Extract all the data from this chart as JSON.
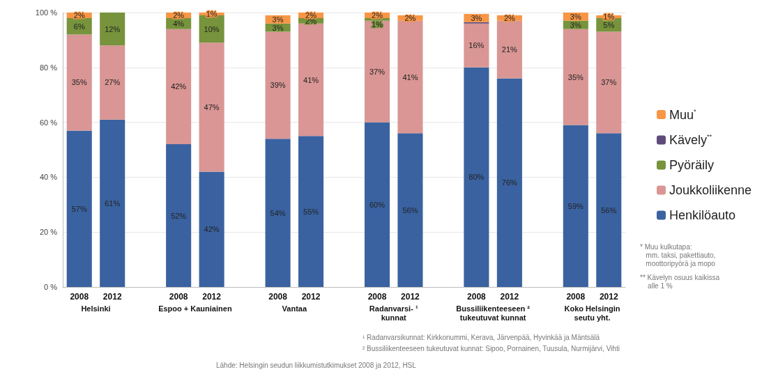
{
  "chart_data": {
    "type": "bar",
    "stacked": true,
    "categories": [
      "2008",
      "2012",
      null,
      "2008",
      "2012",
      null,
      "2008",
      "2012",
      null,
      "2008",
      "2012",
      null,
      "2008",
      "2012",
      null,
      "2008",
      "2012"
    ],
    "series": [
      {
        "name": "Henkilöauto",
        "color": "#3a62a0",
        "values": [
          57,
          61,
          null,
          52,
          42,
          null,
          54,
          55,
          null,
          60,
          56,
          null,
          80,
          76,
          null,
          59,
          56
        ],
        "value_labels": [
          "57%",
          "61%",
          null,
          "52%",
          "42%",
          null,
          "54%",
          "55%",
          null,
          "60%",
          "56%",
          null,
          "80%",
          "76%",
          null,
          "59%",
          "56%"
        ]
      },
      {
        "name": "Joukkoliikenne",
        "color": "#d99694",
        "values": [
          35,
          27,
          null,
          42,
          47,
          null,
          39,
          41,
          null,
          37,
          41,
          null,
          16,
          21,
          null,
          35,
          37
        ],
        "value_labels": [
          "35%",
          "27%",
          null,
          "42%",
          "47%",
          null,
          "39%",
          "41%",
          null,
          "37%",
          "41%",
          null,
          "16%",
          "21%",
          null,
          "35%",
          "37%"
        ]
      },
      {
        "name": "Pyöräily",
        "color": "#77933c",
        "values": [
          6,
          12,
          null,
          4,
          10,
          null,
          3,
          2,
          null,
          1,
          null,
          null,
          null,
          null,
          null,
          3,
          5
        ],
        "value_labels": [
          "6%",
          "12%",
          null,
          "4%",
          "10%",
          null,
          "3%",
          "2%",
          null,
          "1%",
          null,
          null,
          null,
          null,
          null,
          "3%",
          "5%"
        ]
      },
      {
        "name": "Kävely$^{**}$",
        "color": "#604a7b",
        "values": [
          null,
          null,
          null,
          null,
          null,
          null,
          null,
          null,
          null,
          null,
          null,
          null,
          0.5,
          null,
          null,
          null,
          null
        ]
      },
      {
        "name": "Muu$^{*}$",
        "color": "#f79646",
        "values": [
          2,
          null,
          null,
          2,
          1,
          null,
          3,
          2,
          null,
          2,
          2,
          null,
          3,
          2,
          null,
          3,
          1
        ],
        "value_labels": [
          "2%",
          null,
          null,
          "2%",
          "1%",
          null,
          "3%",
          "2%",
          null,
          "2%",
          "2%",
          null,
          "3%",
          "2%",
          null,
          "3%",
          "1%"
        ]
      }
    ],
    "ylim": [
      0,
      100
    ],
    "yticks": [
      {
        "value": 0,
        "label": "0 %"
      },
      {
        "value": 20,
        "label": "20 %"
      },
      {
        "value": 40,
        "label": "40 %"
      },
      {
        "value": 60,
        "label": "60 %"
      },
      {
        "value": 80,
        "label": "80 %"
      },
      {
        "value": 100,
        "label": "100 %"
      }
    ],
    "grid": "y",
    "legend": "right",
    "annotations": [
      "Helsinki",
      "Espoo + Kauniainen",
      "Vantaa",
      "Radanvarsi- ¹\nkunnat",
      "Bussiliikenteeseen ²\ntukeutuvat kunnat",
      "Koko Helsingin\nseutu yht.",
      "* Muu kulkutapa:\n   mm. taksi, pakettiauto,\n   moottoripyörä ja mopo",
      "** Kävelyn osuus kaikissa\n    alle 1 %",
      "¹ Radanvarsikunnat: Kirkkonummi, Kerava, Järvenpää, Hyvinkää ja Mäntsälä",
      "² Bussiliikenteeseen tukeutuvat kunnat: Sipoo, Pornainen, Tuusula, Nurmijärvi, Vihti",
      "Lähde: Helsingin seudun liikkumistutkimukset 2008 ja 2012, HSL"
    ]
  }
}
